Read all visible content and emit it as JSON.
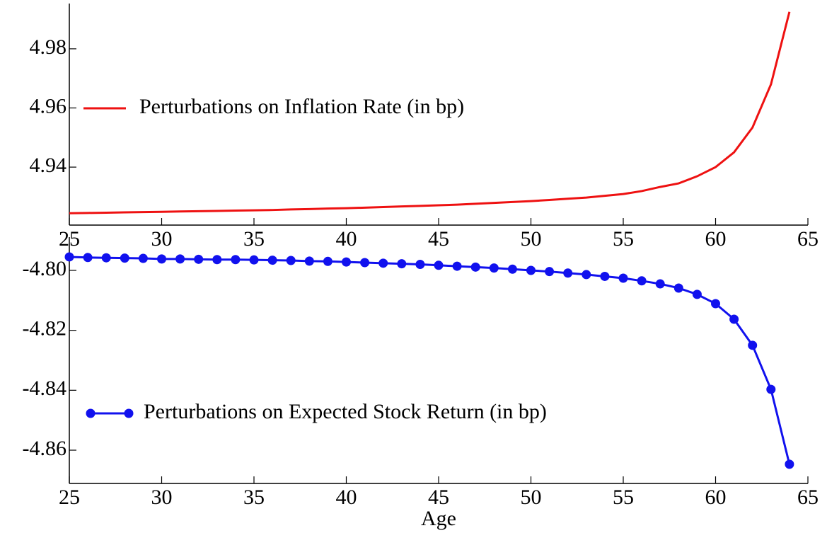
{
  "chart_data": [
    {
      "type": "line",
      "legend": "center left",
      "x": [
        25,
        26,
        27,
        28,
        29,
        30,
        31,
        32,
        33,
        34,
        35,
        36,
        37,
        38,
        39,
        40,
        41,
        42,
        43,
        44,
        45,
        46,
        47,
        48,
        49,
        50,
        51,
        52,
        53,
        54,
        55,
        56,
        57,
        58,
        59,
        60,
        61,
        62,
        63,
        64
      ],
      "series": [
        {
          "name": "Perturbations on Inflation Rate (in bp)",
          "color": "#ee1111",
          "marker": false,
          "values": [
            4.9244,
            4.9245,
            4.9246,
            4.9247,
            4.9248,
            4.9249,
            4.925,
            4.9251,
            4.9252,
            4.9253,
            4.9254,
            4.9255,
            4.9257,
            4.9258,
            4.926,
            4.9261,
            4.9263,
            4.9265,
            4.9267,
            4.9269,
            4.9271,
            4.9273,
            4.9276,
            4.9279,
            4.9282,
            4.9285,
            4.9289,
            4.9293,
            4.9297,
            4.9303,
            4.9309,
            4.9319,
            4.9333,
            4.9345,
            4.9369,
            4.94,
            4.945,
            4.9534,
            4.968,
            4.9925
          ]
        }
      ],
      "xlim": [
        25,
        65
      ],
      "xticks": [
        25,
        30,
        35,
        40,
        45,
        50,
        55,
        60,
        65
      ],
      "ylim": [
        4.9204,
        4.9953
      ],
      "yticks": [
        4.94,
        4.96,
        4.98
      ]
    },
    {
      "type": "line",
      "legend": "lower left",
      "xlabel": "Age",
      "x": [
        25,
        26,
        27,
        28,
        29,
        30,
        31,
        32,
        33,
        34,
        35,
        36,
        37,
        38,
        39,
        40,
        41,
        42,
        43,
        44,
        45,
        46,
        47,
        48,
        49,
        50,
        51,
        52,
        53,
        54,
        55,
        56,
        57,
        58,
        59,
        60,
        61,
        62,
        63,
        64
      ],
      "series": [
        {
          "name": "Perturbations on Expected Stock Return (in bp)",
          "color": "#1111ee",
          "marker": true,
          "values": [
            -4.7955,
            -4.7957,
            -4.7958,
            -4.7959,
            -4.796,
            -4.7962,
            -4.7962,
            -4.7963,
            -4.7964,
            -4.7964,
            -4.7965,
            -4.7966,
            -4.7967,
            -4.7969,
            -4.797,
            -4.7972,
            -4.7974,
            -4.7976,
            -4.7978,
            -4.798,
            -4.7983,
            -4.7986,
            -4.7989,
            -4.7992,
            -4.7996,
            -4.8,
            -4.8004,
            -4.8009,
            -4.8014,
            -4.802,
            -4.8026,
            -4.8035,
            -4.8045,
            -4.8059,
            -4.808,
            -4.8111,
            -4.8163,
            -4.825,
            -4.8397,
            -4.8647
          ]
        }
      ],
      "xlim": [
        25,
        65
      ],
      "xticks": [
        25,
        30,
        35,
        40,
        45,
        50,
        55,
        60,
        65
      ],
      "ylim": [
        -4.8711,
        -4.7889
      ],
      "yticks": [
        {
          "value": -4.8,
          "label": "-4.80"
        },
        -4.82,
        -4.84,
        -4.86
      ]
    }
  ]
}
